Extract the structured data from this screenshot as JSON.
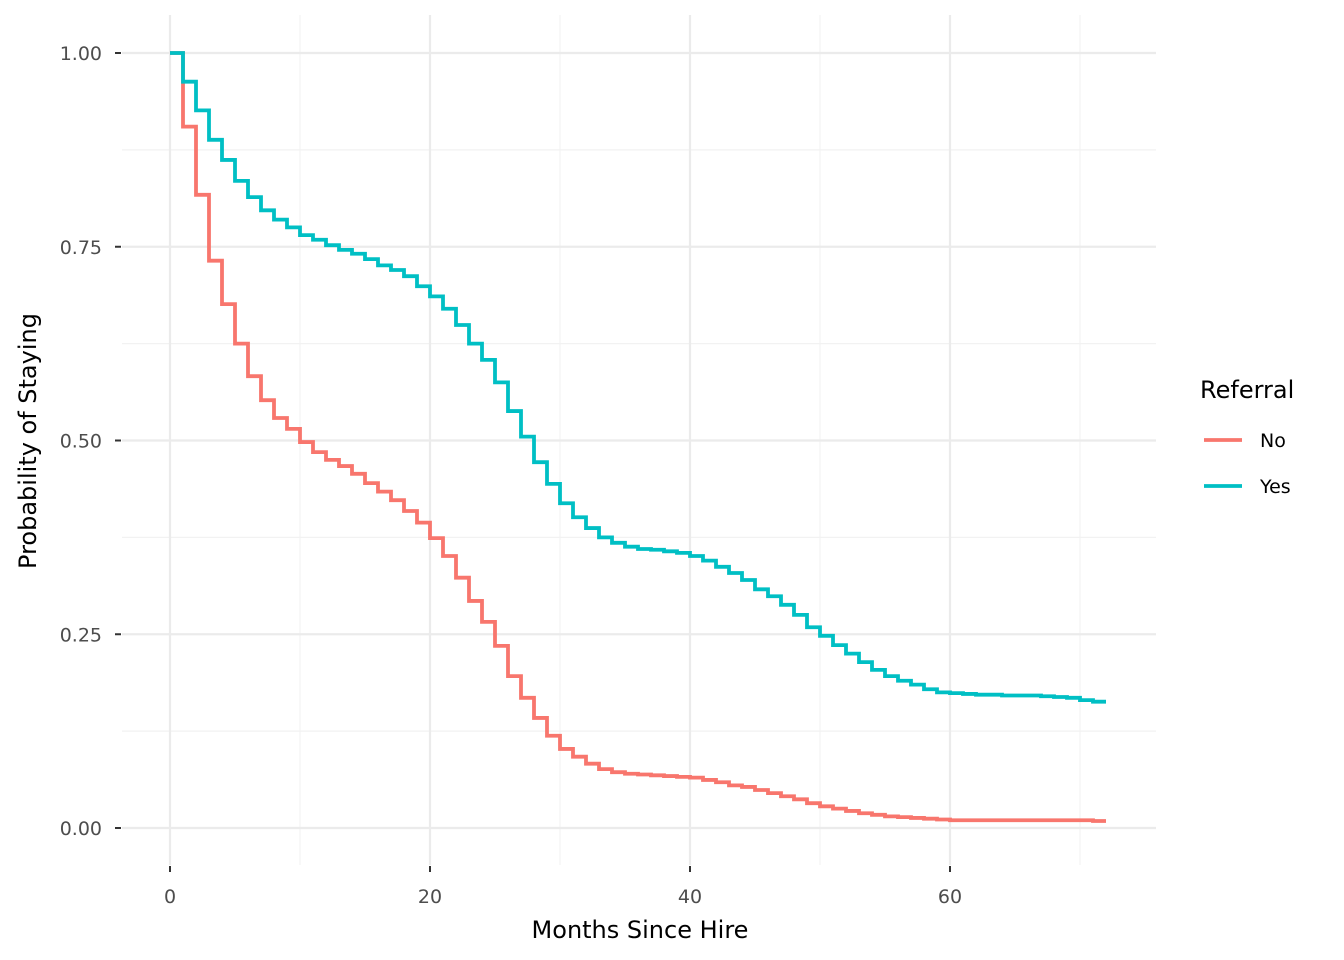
{
  "chart_data": {
    "type": "line",
    "subtype": "step (Kaplan-Meier survival)",
    "title": "",
    "xlabel": "Months Since Hire",
    "ylabel": "Probability of Staying",
    "xlim": [
      -7.5,
      75.6
    ],
    "ylim": [
      -0.05,
      1.05
    ],
    "xticks": [
      0,
      20,
      40,
      60
    ],
    "xtick_labels": [
      "0",
      "20",
      "40",
      "60"
    ],
    "yticks": [
      0,
      0.25,
      0.5,
      0.75,
      1.0
    ],
    "ytick_labels": [
      "0.00",
      "0.25",
      "0.50",
      "0.75",
      "1.00"
    ],
    "grid": true,
    "legend": {
      "title": "Referral",
      "placement": "right"
    },
    "series": [
      {
        "name": "No",
        "color": "#F8766D",
        "x": [
          0,
          1,
          2,
          3,
          4,
          5,
          6,
          7,
          8,
          9,
          10,
          11,
          12,
          13,
          14,
          15,
          16,
          17,
          18,
          19,
          20,
          21,
          22,
          23,
          24,
          25,
          26,
          27,
          28,
          29,
          30,
          31,
          32,
          33,
          34,
          35,
          36,
          37,
          38,
          39,
          40,
          41,
          42,
          43,
          44,
          45,
          46,
          47,
          48,
          49,
          50,
          51,
          52,
          53,
          54,
          55,
          56,
          57,
          58,
          59,
          60,
          61,
          62,
          63,
          64,
          65,
          66,
          67,
          68,
          69,
          70,
          71,
          72
        ],
        "y": [
          1.0,
          0.905,
          0.817,
          0.732,
          0.676,
          0.625,
          0.583,
          0.552,
          0.529,
          0.515,
          0.498,
          0.485,
          0.475,
          0.467,
          0.457,
          0.445,
          0.434,
          0.423,
          0.409,
          0.394,
          0.374,
          0.351,
          0.323,
          0.293,
          0.266,
          0.235,
          0.196,
          0.168,
          0.142,
          0.119,
          0.102,
          0.092,
          0.083,
          0.076,
          0.072,
          0.07,
          0.069,
          0.068,
          0.067,
          0.066,
          0.065,
          0.062,
          0.059,
          0.055,
          0.053,
          0.049,
          0.045,
          0.041,
          0.037,
          0.032,
          0.028,
          0.025,
          0.022,
          0.019,
          0.017,
          0.015,
          0.014,
          0.013,
          0.012,
          0.011,
          0.01,
          0.01,
          0.01,
          0.01,
          0.01,
          0.01,
          0.01,
          0.01,
          0.01,
          0.01,
          0.01,
          0.009,
          0.009
        ]
      },
      {
        "name": "Yes",
        "color": "#00BFC4",
        "x": [
          0,
          1,
          2,
          3,
          4,
          5,
          6,
          7,
          8,
          9,
          10,
          11,
          12,
          13,
          14,
          15,
          16,
          17,
          18,
          19,
          20,
          21,
          22,
          23,
          24,
          25,
          26,
          27,
          28,
          29,
          30,
          31,
          32,
          33,
          34,
          35,
          36,
          37,
          38,
          39,
          40,
          41,
          42,
          43,
          44,
          45,
          46,
          47,
          48,
          49,
          50,
          51,
          52,
          53,
          54,
          55,
          56,
          57,
          58,
          59,
          60,
          61,
          62,
          63,
          64,
          65,
          66,
          67,
          68,
          69,
          70,
          71,
          72
        ],
        "y": [
          1.0,
          0.963,
          0.926,
          0.888,
          0.862,
          0.835,
          0.814,
          0.797,
          0.785,
          0.775,
          0.765,
          0.759,
          0.752,
          0.746,
          0.741,
          0.734,
          0.726,
          0.72,
          0.712,
          0.699,
          0.686,
          0.67,
          0.649,
          0.625,
          0.604,
          0.575,
          0.538,
          0.505,
          0.472,
          0.444,
          0.419,
          0.401,
          0.387,
          0.375,
          0.368,
          0.363,
          0.36,
          0.359,
          0.357,
          0.355,
          0.351,
          0.345,
          0.337,
          0.329,
          0.32,
          0.308,
          0.299,
          0.288,
          0.275,
          0.259,
          0.248,
          0.236,
          0.225,
          0.214,
          0.204,
          0.196,
          0.19,
          0.185,
          0.179,
          0.175,
          0.174,
          0.173,
          0.172,
          0.172,
          0.171,
          0.171,
          0.171,
          0.17,
          0.169,
          0.168,
          0.165,
          0.163,
          0.163
        ]
      }
    ]
  }
}
